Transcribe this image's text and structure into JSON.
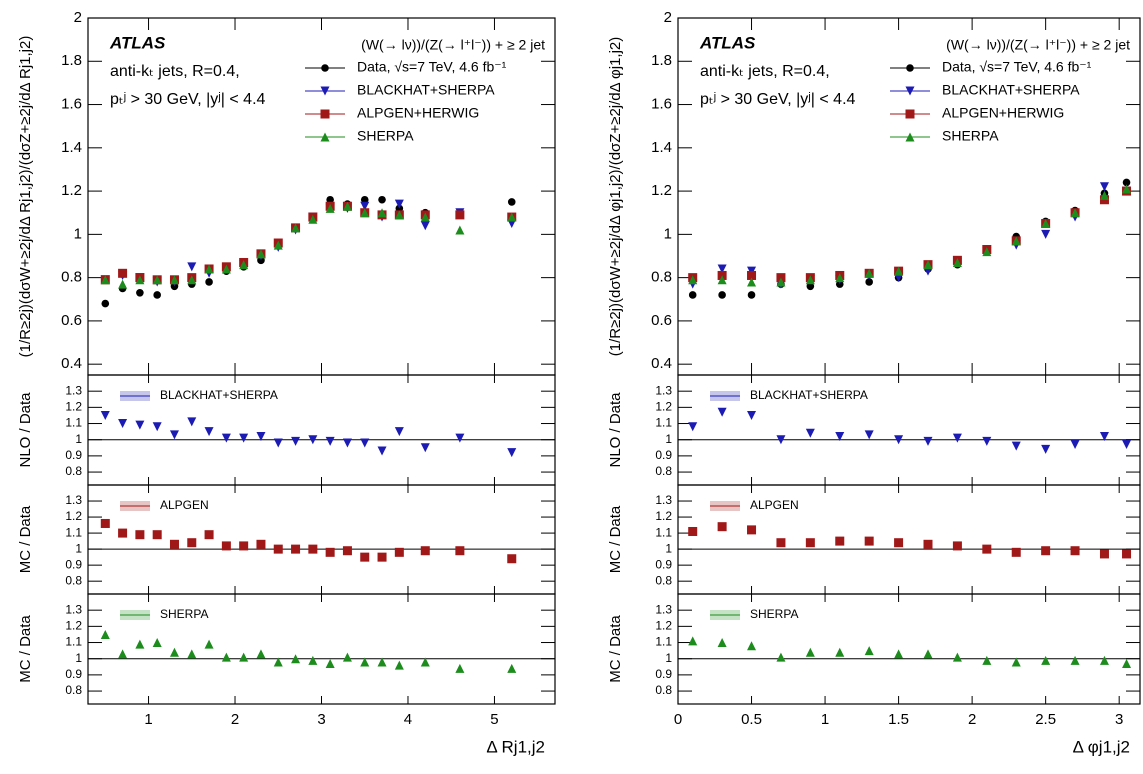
{
  "chart_data": [
    {
      "type": "scatter",
      "y_label": "(1/R≥2j)(dσW+≥2j/dΔ Rj1,j2)/(dσZ+≥2j/dΔ Rj1,j2)",
      "x_label": "Δ Rj1,j2",
      "annotations": [
        "ATLAS",
        "anti-kₜ jets, R=0.4,",
        "pₜʲ > 30 GeV, |yʲ| < 4.4"
      ],
      "process_label": "(W(→ lν))/(Z(→ l⁺l⁻)) + ≥ 2 jet",
      "xlim": [
        0.3,
        5.7
      ],
      "xticks": [
        1,
        2,
        3,
        4,
        5
      ],
      "ylim": [
        0.35,
        2
      ],
      "yticks": [
        0.4,
        0.6,
        0.8,
        1,
        1.2,
        1.4,
        1.6,
        1.8,
        2
      ],
      "x": [
        0.5,
        0.7,
        0.9,
        1.1,
        1.3,
        1.5,
        1.7,
        1.9,
        2.1,
        2.3,
        2.5,
        2.7,
        2.9,
        3.1,
        3.3,
        3.5,
        3.7,
        3.9,
        4.2,
        4.6,
        5.2
      ],
      "series": [
        {
          "name": "Data, √s=7 TeV, 4.6 fb⁻¹",
          "color": "#000000",
          "marker": "circle",
          "values": [
            0.68,
            0.75,
            0.73,
            0.72,
            0.76,
            0.77,
            0.78,
            0.83,
            0.85,
            0.88,
            0.96,
            1.03,
            1.08,
            1.16,
            1.14,
            1.16,
            1.16,
            1.12,
            1.1,
            1.09,
            1.15
          ]
        },
        {
          "name": "BLACKHAT+SHERPA",
          "color": "#1c1cb4",
          "marker": "triangle-down",
          "values": [
            0.79,
            0.81,
            0.8,
            0.78,
            0.78,
            0.85,
            0.82,
            0.84,
            0.86,
            0.9,
            0.94,
            1.02,
            1.08,
            1.12,
            1.12,
            1.13,
            1.08,
            1.14,
            1.04,
            1.1,
            1.05
          ]
        },
        {
          "name": "ALPGEN+HERWIG",
          "color": "#a01818",
          "marker": "square",
          "values": [
            0.79,
            0.82,
            0.8,
            0.79,
            0.79,
            0.8,
            0.84,
            0.85,
            0.87,
            0.91,
            0.96,
            1.03,
            1.08,
            1.13,
            1.13,
            1.1,
            1.09,
            1.09,
            1.09,
            1.09,
            1.08
          ]
        },
        {
          "name": "SHERPA",
          "color": "#1c8c1c",
          "marker": "triangle-up",
          "values": [
            0.79,
            0.77,
            0.79,
            0.79,
            0.79,
            0.79,
            0.84,
            0.84,
            0.86,
            0.91,
            0.95,
            1.03,
            1.07,
            1.12,
            1.13,
            1.1,
            1.1,
            1.09,
            1.08,
            1.02,
            1.08
          ]
        }
      ],
      "ratio_ylim": [
        0.72,
        1.4
      ],
      "ratio_yticks": [
        0.8,
        0.9,
        1,
        1.1,
        1.2,
        1.3
      ],
      "reference": 1,
      "ratio_panels": [
        {
          "y_label": "NLO / Data",
          "series": [
            {
              "name": "BLACKHAT+SHERPA",
              "color": "#1c1cb4",
              "marker": "triangle-down",
              "values": [
                1.15,
                1.1,
                1.09,
                1.08,
                1.03,
                1.11,
                1.05,
                1.01,
                1.01,
                1.02,
                0.98,
                0.99,
                1,
                0.99,
                0.98,
                0.98,
                0.93,
                1.05,
                0.95,
                1.01,
                0.92
              ]
            }
          ]
        },
        {
          "y_label": "MC / Data",
          "series": [
            {
              "name": "ALPGEN",
              "color": "#a01818",
              "marker": "square",
              "values": [
                1.16,
                1.1,
                1.09,
                1.09,
                1.03,
                1.04,
                1.09,
                1.02,
                1.02,
                1.03,
                1,
                1,
                1,
                0.98,
                0.99,
                0.95,
                0.95,
                0.98,
                0.99,
                0.99,
                0.94
              ]
            }
          ]
        },
        {
          "y_label": "MC / Data",
          "series": [
            {
              "name": "SHERPA",
              "color": "#1c8c1c",
              "marker": "triangle-up",
              "values": [
                1.15,
                1.03,
                1.09,
                1.1,
                1.04,
                1.03,
                1.09,
                1.01,
                1.01,
                1.03,
                0.98,
                1,
                0.99,
                0.97,
                1.01,
                0.98,
                0.98,
                0.96,
                0.98,
                0.94,
                0.94
              ]
            }
          ]
        }
      ]
    },
    {
      "type": "scatter",
      "y_label": "(1/R≥2j)(dσW+≥2j/dΔ φj1,j2)/(dσZ+≥2j/dΔ φj1,j2)",
      "x_label": "Δ φj1,j2",
      "annotations": [
        "ATLAS",
        "anti-kₜ jets, R=0.4,",
        "pₜʲ > 30 GeV, |yʲ| < 4.4"
      ],
      "process_label": "(W(→ lν))/(Z(→ l⁺l⁻)) + ≥ 2 jet",
      "xlim": [
        0,
        3.1416
      ],
      "xticks": [
        0,
        0.5,
        1,
        1.5,
        2,
        2.5,
        3
      ],
      "ylim": [
        0.35,
        2
      ],
      "yticks": [
        0.4,
        0.6,
        0.8,
        1,
        1.2,
        1.4,
        1.6,
        1.8,
        2
      ],
      "x": [
        0.1,
        0.3,
        0.5,
        0.7,
        0.9,
        1.1,
        1.3,
        1.5,
        1.7,
        1.9,
        2.1,
        2.3,
        2.5,
        2.7,
        2.9,
        3.05
      ],
      "series": [
        {
          "name": "Data, √s=7 TeV, 4.6 fb⁻¹",
          "color": "#000000",
          "marker": "circle",
          "values": [
            0.72,
            0.72,
            0.72,
            0.77,
            0.76,
            0.77,
            0.78,
            0.8,
            0.84,
            0.86,
            0.93,
            0.99,
            1.06,
            1.11,
            1.19,
            1.24
          ]
        },
        {
          "name": "BLACKHAT+SHERPA",
          "color": "#1c1cb4",
          "marker": "triangle-down",
          "values": [
            0.77,
            0.84,
            0.83,
            0.77,
            0.79,
            0.79,
            0.81,
            0.8,
            0.83,
            0.87,
            0.92,
            0.95,
            1,
            1.08,
            1.22,
            1.2
          ]
        },
        {
          "name": "ALPGEN+HERWIG",
          "color": "#a01818",
          "marker": "square",
          "values": [
            0.8,
            0.81,
            0.81,
            0.8,
            0.8,
            0.81,
            0.82,
            0.83,
            0.86,
            0.88,
            0.93,
            0.97,
            1.05,
            1.1,
            1.16,
            1.2
          ]
        },
        {
          "name": "SHERPA",
          "color": "#1c8c1c",
          "marker": "triangle-up",
          "values": [
            0.79,
            0.79,
            0.78,
            0.78,
            0.79,
            0.8,
            0.82,
            0.83,
            0.86,
            0.87,
            0.92,
            0.97,
            1.05,
            1.1,
            1.18,
            1.21
          ]
        }
      ],
      "ratio_ylim": [
        0.72,
        1.4
      ],
      "ratio_yticks": [
        0.8,
        0.9,
        1,
        1.1,
        1.2,
        1.3
      ],
      "reference": 1,
      "ratio_panels": [
        {
          "y_label": "NLO / Data",
          "series": [
            {
              "name": "BLACKHAT+SHERPA",
              "color": "#1c1cb4",
              "marker": "triangle-down",
              "values": [
                1.08,
                1.17,
                1.15,
                1,
                1.04,
                1.02,
                1.03,
                1,
                0.99,
                1.01,
                0.99,
                0.96,
                0.94,
                0.97,
                1.02,
                0.97
              ]
            }
          ]
        },
        {
          "y_label": "MC / Data",
          "series": [
            {
              "name": "ALPGEN",
              "color": "#a01818",
              "marker": "square",
              "values": [
                1.11,
                1.14,
                1.12,
                1.04,
                1.04,
                1.05,
                1.05,
                1.04,
                1.03,
                1.02,
                1,
                0.98,
                0.99,
                0.99,
                0.97,
                0.97
              ]
            }
          ]
        },
        {
          "y_label": "MC / Data",
          "series": [
            {
              "name": "SHERPA",
              "color": "#1c8c1c",
              "marker": "triangle-up",
              "values": [
                1.11,
                1.1,
                1.08,
                1.01,
                1.04,
                1.04,
                1.05,
                1.03,
                1.03,
                1.01,
                0.99,
                0.98,
                0.99,
                0.99,
                0.99,
                0.97
              ]
            }
          ]
        }
      ]
    }
  ]
}
